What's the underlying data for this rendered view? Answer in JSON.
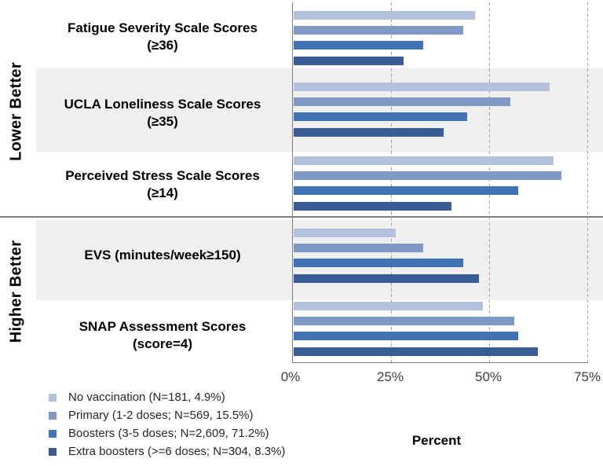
{
  "chart_data": {
    "type": "bar",
    "orientation": "horizontal",
    "title": "",
    "xlabel": "Percent",
    "xlim": [
      0,
      75
    ],
    "x_ticks": [
      "0%",
      "25%",
      "50%",
      "75%"
    ],
    "gridlines": {
      "style": "dashed-vertical",
      "positions_pct": [
        25,
        50,
        75
      ]
    },
    "legend_position": "bottom-left",
    "sections": [
      {
        "label": "Lower Better",
        "category_indexes": [
          0,
          1,
          2
        ]
      },
      {
        "label": "Higher Better",
        "category_indexes": [
          3,
          4
        ]
      }
    ],
    "shaded_band_categories": [
      1,
      3
    ],
    "band_color": "#f0efef",
    "categories": [
      "Fatigue Severity Scale Scores\n(≥36)",
      "UCLA Loneliness Scale Scores\n(≥35)",
      "Perceived Stress Scale Scores\n(≥14)",
      "EVS (minutes/week≥150)",
      "SNAP Assessment Scores\n(score=4)"
    ],
    "series": [
      {
        "name": "No vaccination (N=181, 4.9%)",
        "color": "#b3c1dd",
        "values": [
          46,
          65,
          66,
          26,
          48
        ]
      },
      {
        "name": "Primary (1-2 doses; N=569, 15.5%)",
        "color": "#8098c6",
        "values": [
          43,
          55,
          68,
          33,
          56
        ]
      },
      {
        "name": "Boosters (3-5 doses; N=2,609, 71.2%)",
        "color": "#4173b4",
        "values": [
          33,
          44,
          57,
          43,
          57
        ]
      },
      {
        "name": "Extra boosters (>=6 doses; N=304, 8.3%)",
        "color": "#3a5c94",
        "values": [
          28,
          38,
          40,
          47,
          62
        ]
      }
    ]
  }
}
